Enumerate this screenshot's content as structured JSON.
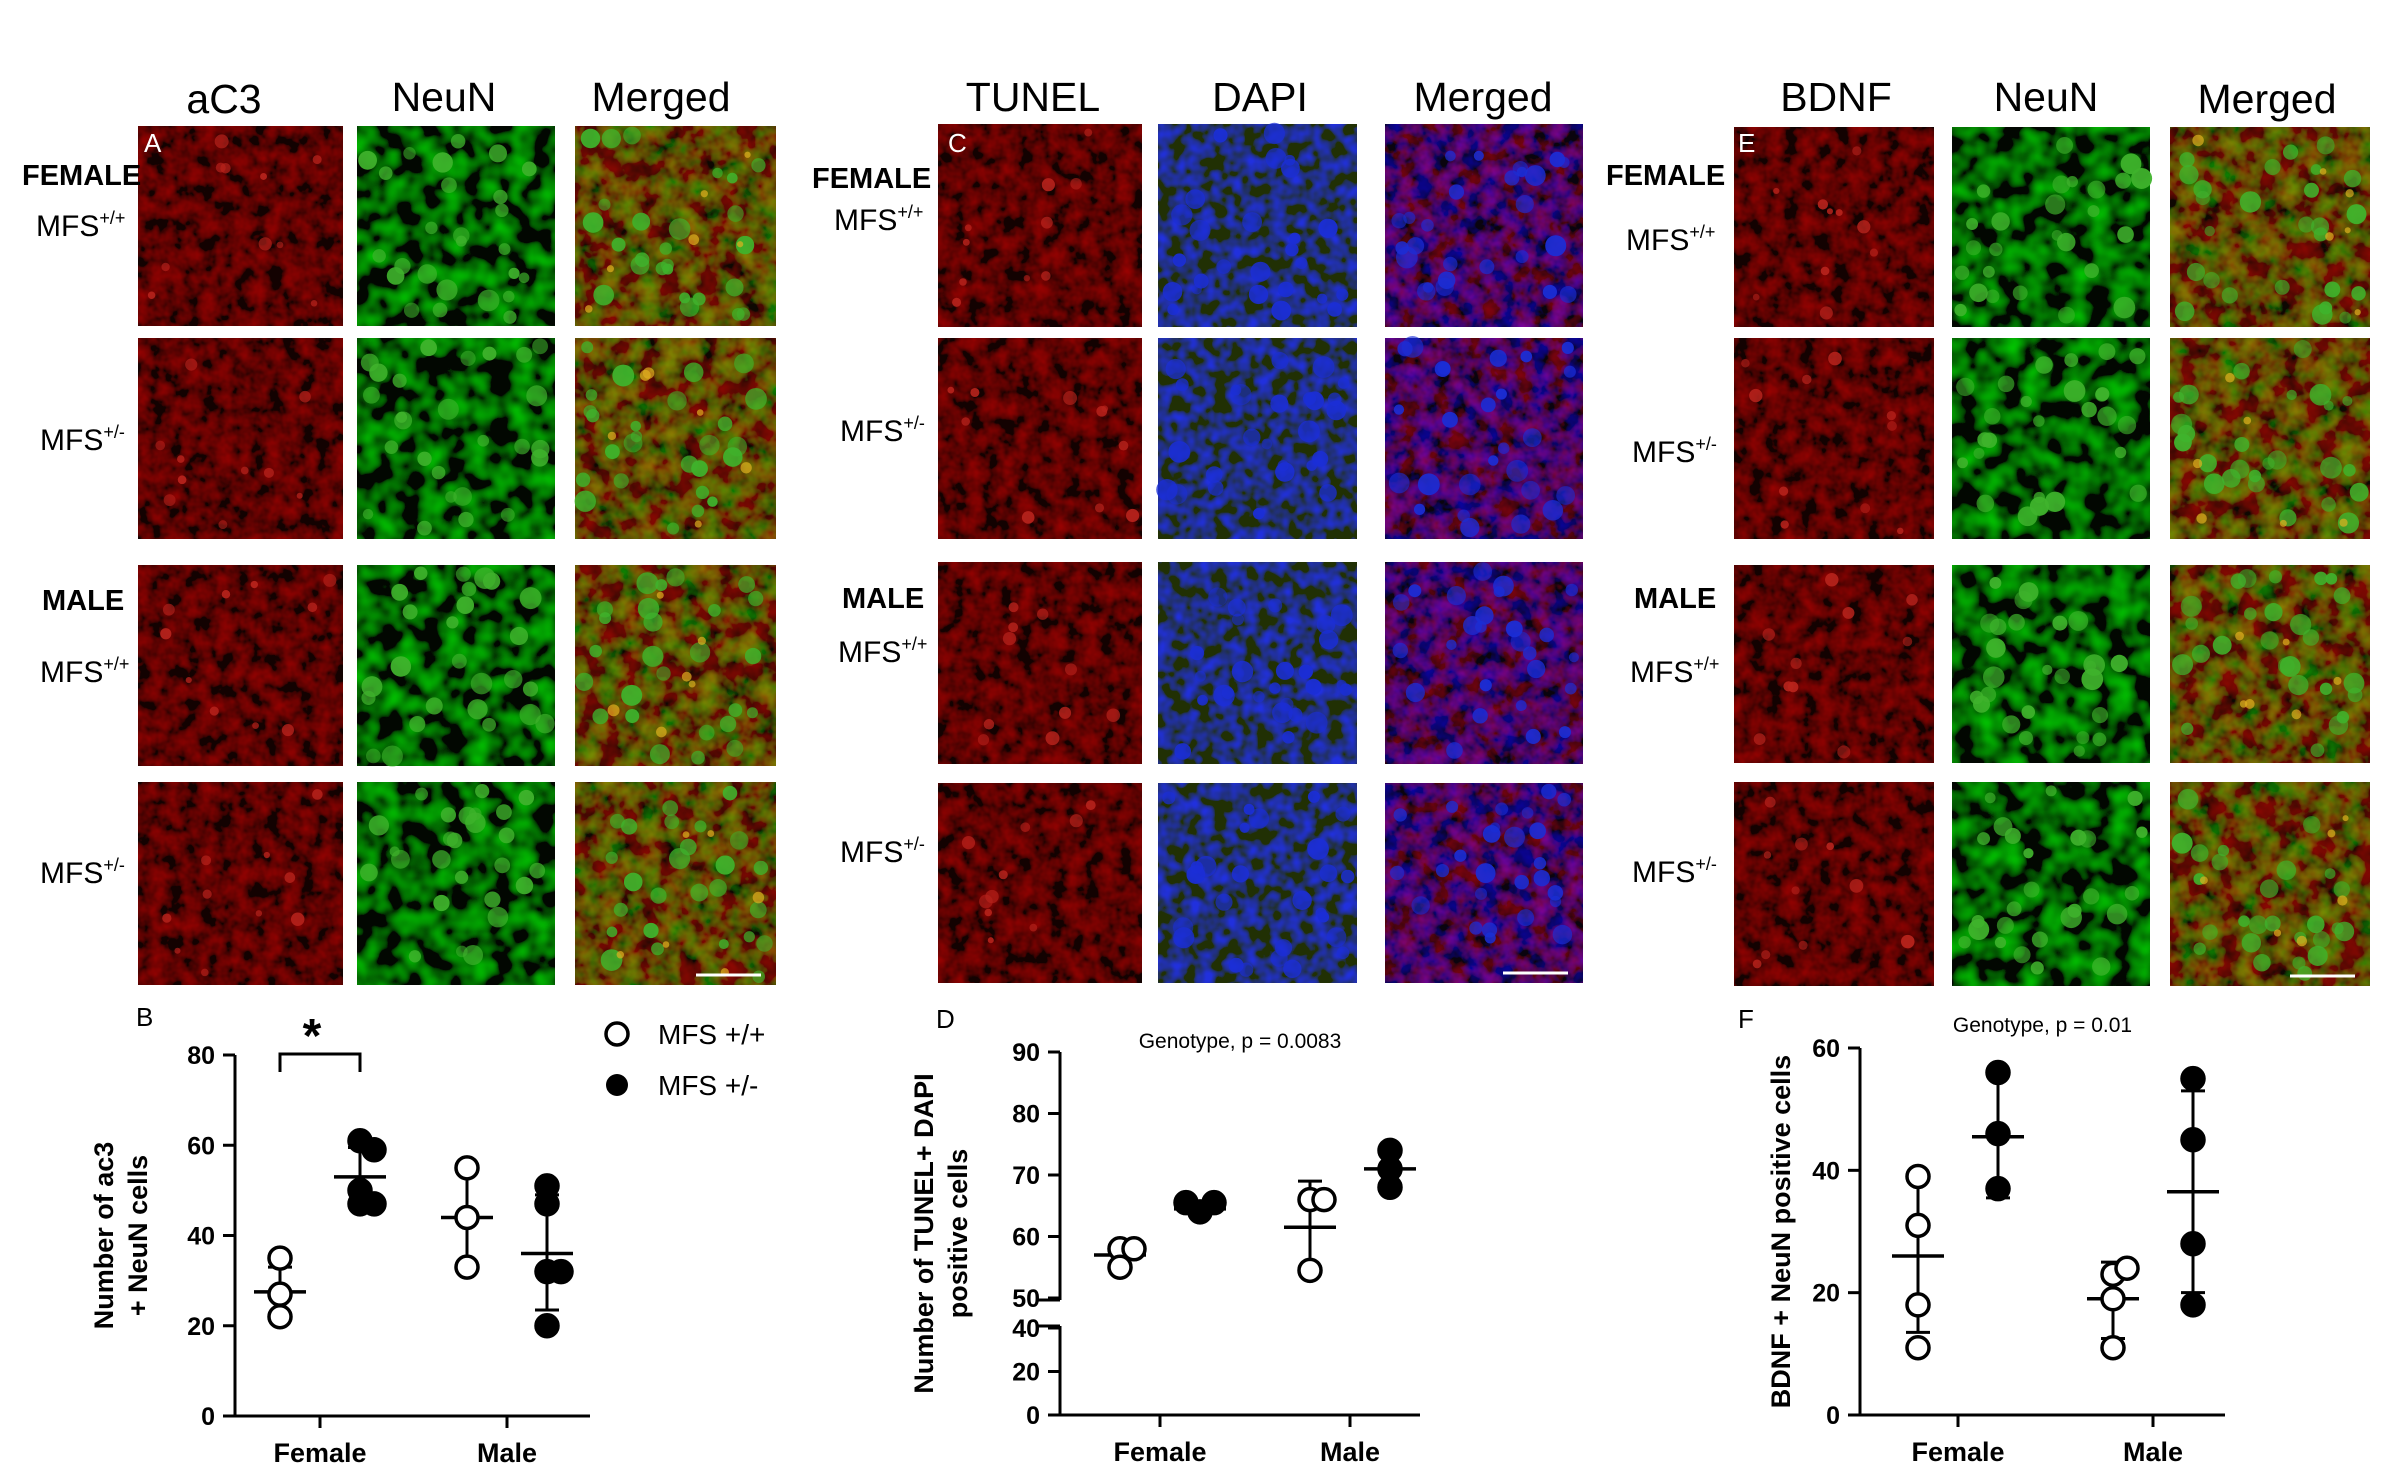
{
  "colors": {
    "red_channel": "#b8231c",
    "green_channel": "#3fb32c",
    "blue_channel": "#1b2ed6",
    "merged_red_green": "#8e5a1e",
    "merged_blue_red": "#5a1f7e"
  },
  "panels": {
    "aC3": {
      "letter": "A",
      "columns": [
        "aC3",
        "NeuN",
        "Merged"
      ],
      "rows": [
        {
          "sex": "FEMALE",
          "genotype": "MFS",
          "sup": "+/+"
        },
        {
          "sex": "",
          "genotype": "MFS",
          "sup": "+/-"
        },
        {
          "sex": "MALE",
          "genotype": "MFS",
          "sup": "+/+"
        },
        {
          "sex": "",
          "genotype": "MFS",
          "sup": "+/-"
        }
      ]
    },
    "TUNEL": {
      "letter": "C",
      "columns": [
        "TUNEL",
        "DAPI",
        "Merged"
      ],
      "rows": [
        {
          "sex": "FEMALE",
          "genotype": "MFS",
          "sup": "+/+"
        },
        {
          "sex": "",
          "genotype": "MFS",
          "sup": "+/-"
        },
        {
          "sex": "MALE",
          "genotype": "MFS",
          "sup": "+/+"
        },
        {
          "sex": "",
          "genotype": "MFS",
          "sup": "+/-"
        }
      ]
    },
    "BDNF": {
      "letter": "E",
      "columns": [
        "BDNF",
        "NeuN",
        "Merged"
      ],
      "rows": [
        {
          "sex": "FEMALE",
          "genotype": "MFS",
          "sup": "+/+"
        },
        {
          "sex": "",
          "genotype": "MFS",
          "sup": "+/-"
        },
        {
          "sex": "MALE",
          "genotype": "MFS",
          "sup": "+/+"
        },
        {
          "sex": "",
          "genotype": "MFS",
          "sup": "+/-"
        }
      ]
    }
  },
  "legend": {
    "items": [
      {
        "label": "MFS +/+",
        "marker": "open-circle"
      },
      {
        "label": "MFS +/-",
        "marker": "filled-circle"
      }
    ]
  },
  "chart_data": [
    {
      "id": "B",
      "letter": "B",
      "type": "scatter",
      "categories": [
        "Female",
        "Male"
      ],
      "ylabel": [
        "Number of  ac3",
        "+ NeuN cells"
      ],
      "ylim": [
        0,
        80
      ],
      "yticks": [
        0,
        20,
        40,
        60,
        80
      ],
      "annotation": "*",
      "legend": "top-right",
      "series": [
        {
          "name": "MFS +/+",
          "marker": "open",
          "points": [
            [
              0,
              35
            ],
            [
              0,
              27
            ],
            [
              0,
              22
            ],
            [
              1,
              55
            ],
            [
              1,
              44
            ],
            [
              1,
              33
            ]
          ],
          "mean": [
            27.5,
            44
          ],
          "sd_low": [
            22,
            33
          ],
          "sd_high": [
            33,
            55
          ]
        },
        {
          "name": "MFS +/-",
          "marker": "filled",
          "points": [
            [
              0,
              61
            ],
            [
              0,
              59
            ],
            [
              0,
              50
            ],
            [
              0,
              47
            ],
            [
              0,
              47
            ],
            [
              1,
              51
            ],
            [
              1,
              47
            ],
            [
              1,
              32
            ],
            [
              1,
              32
            ],
            [
              1,
              20
            ]
          ],
          "mean": [
            53,
            36
          ],
          "sd_low": [
            47,
            23.5
          ],
          "sd_high": [
            59.5,
            49
          ]
        }
      ]
    },
    {
      "id": "D",
      "letter": "D",
      "type": "scatter",
      "title": "Genotype, p = 0.0083",
      "categories": [
        "Female",
        "Male"
      ],
      "ylabel": [
        "Number of TUNEL+ DAPI",
        "positive cells"
      ],
      "ylim": [
        0,
        90
      ],
      "axis_break": [
        40,
        50
      ],
      "yticks": [
        0,
        20,
        40,
        50,
        60,
        70,
        80,
        90
      ],
      "series": [
        {
          "name": "MFS +/+",
          "marker": "open",
          "points": [
            [
              0,
              58
            ],
            [
              0,
              58
            ],
            [
              0,
              55
            ],
            [
              1,
              66
            ],
            [
              1,
              66
            ],
            [
              1,
              54.5
            ]
          ],
          "mean": [
            57,
            61.5
          ],
          "sd_low": [
            55,
            54
          ],
          "sd_high": [
            58.5,
            69
          ]
        },
        {
          "name": "MFS +/-",
          "marker": "filled",
          "points": [
            [
              0,
              64
            ],
            [
              0,
              65.5
            ],
            [
              0,
              65.5
            ],
            [
              1,
              74
            ],
            [
              1,
              71
            ],
            [
              1,
              68
            ]
          ],
          "mean": [
            64.5,
            71
          ],
          "sd_low": [
            63.5,
            68
          ],
          "sd_high": [
            65.5,
            74
          ]
        }
      ]
    },
    {
      "id": "F",
      "letter": "F",
      "type": "scatter",
      "title": "Genotype, p = 0.01",
      "categories": [
        "Female",
        "Male"
      ],
      "ylabel": [
        "BDNF + NeuN positive cells"
      ],
      "ylim": [
        0,
        60
      ],
      "yticks": [
        0,
        20,
        40,
        60
      ],
      "series": [
        {
          "name": "MFS +/+",
          "marker": "open",
          "points": [
            [
              0,
              39
            ],
            [
              0,
              31
            ],
            [
              0,
              18
            ],
            [
              0,
              11
            ],
            [
              1,
              23
            ],
            [
              1,
              24
            ],
            [
              1,
              19
            ],
            [
              1,
              11
            ]
          ],
          "mean": [
            26,
            19
          ],
          "sd_low": [
            13.5,
            12.5
          ],
          "sd_high": [
            38.5,
            25
          ]
        },
        {
          "name": "MFS +/-",
          "marker": "filled",
          "points": [
            [
              0,
              56
            ],
            [
              0,
              46
            ],
            [
              0,
              37
            ],
            [
              1,
              55
            ],
            [
              1,
              45
            ],
            [
              1,
              28
            ],
            [
              1,
              18
            ]
          ],
          "mean": [
            45.5,
            36.5
          ],
          "sd_low": [
            35.5,
            20
          ],
          "sd_high": [
            55.5,
            53
          ]
        }
      ]
    }
  ]
}
